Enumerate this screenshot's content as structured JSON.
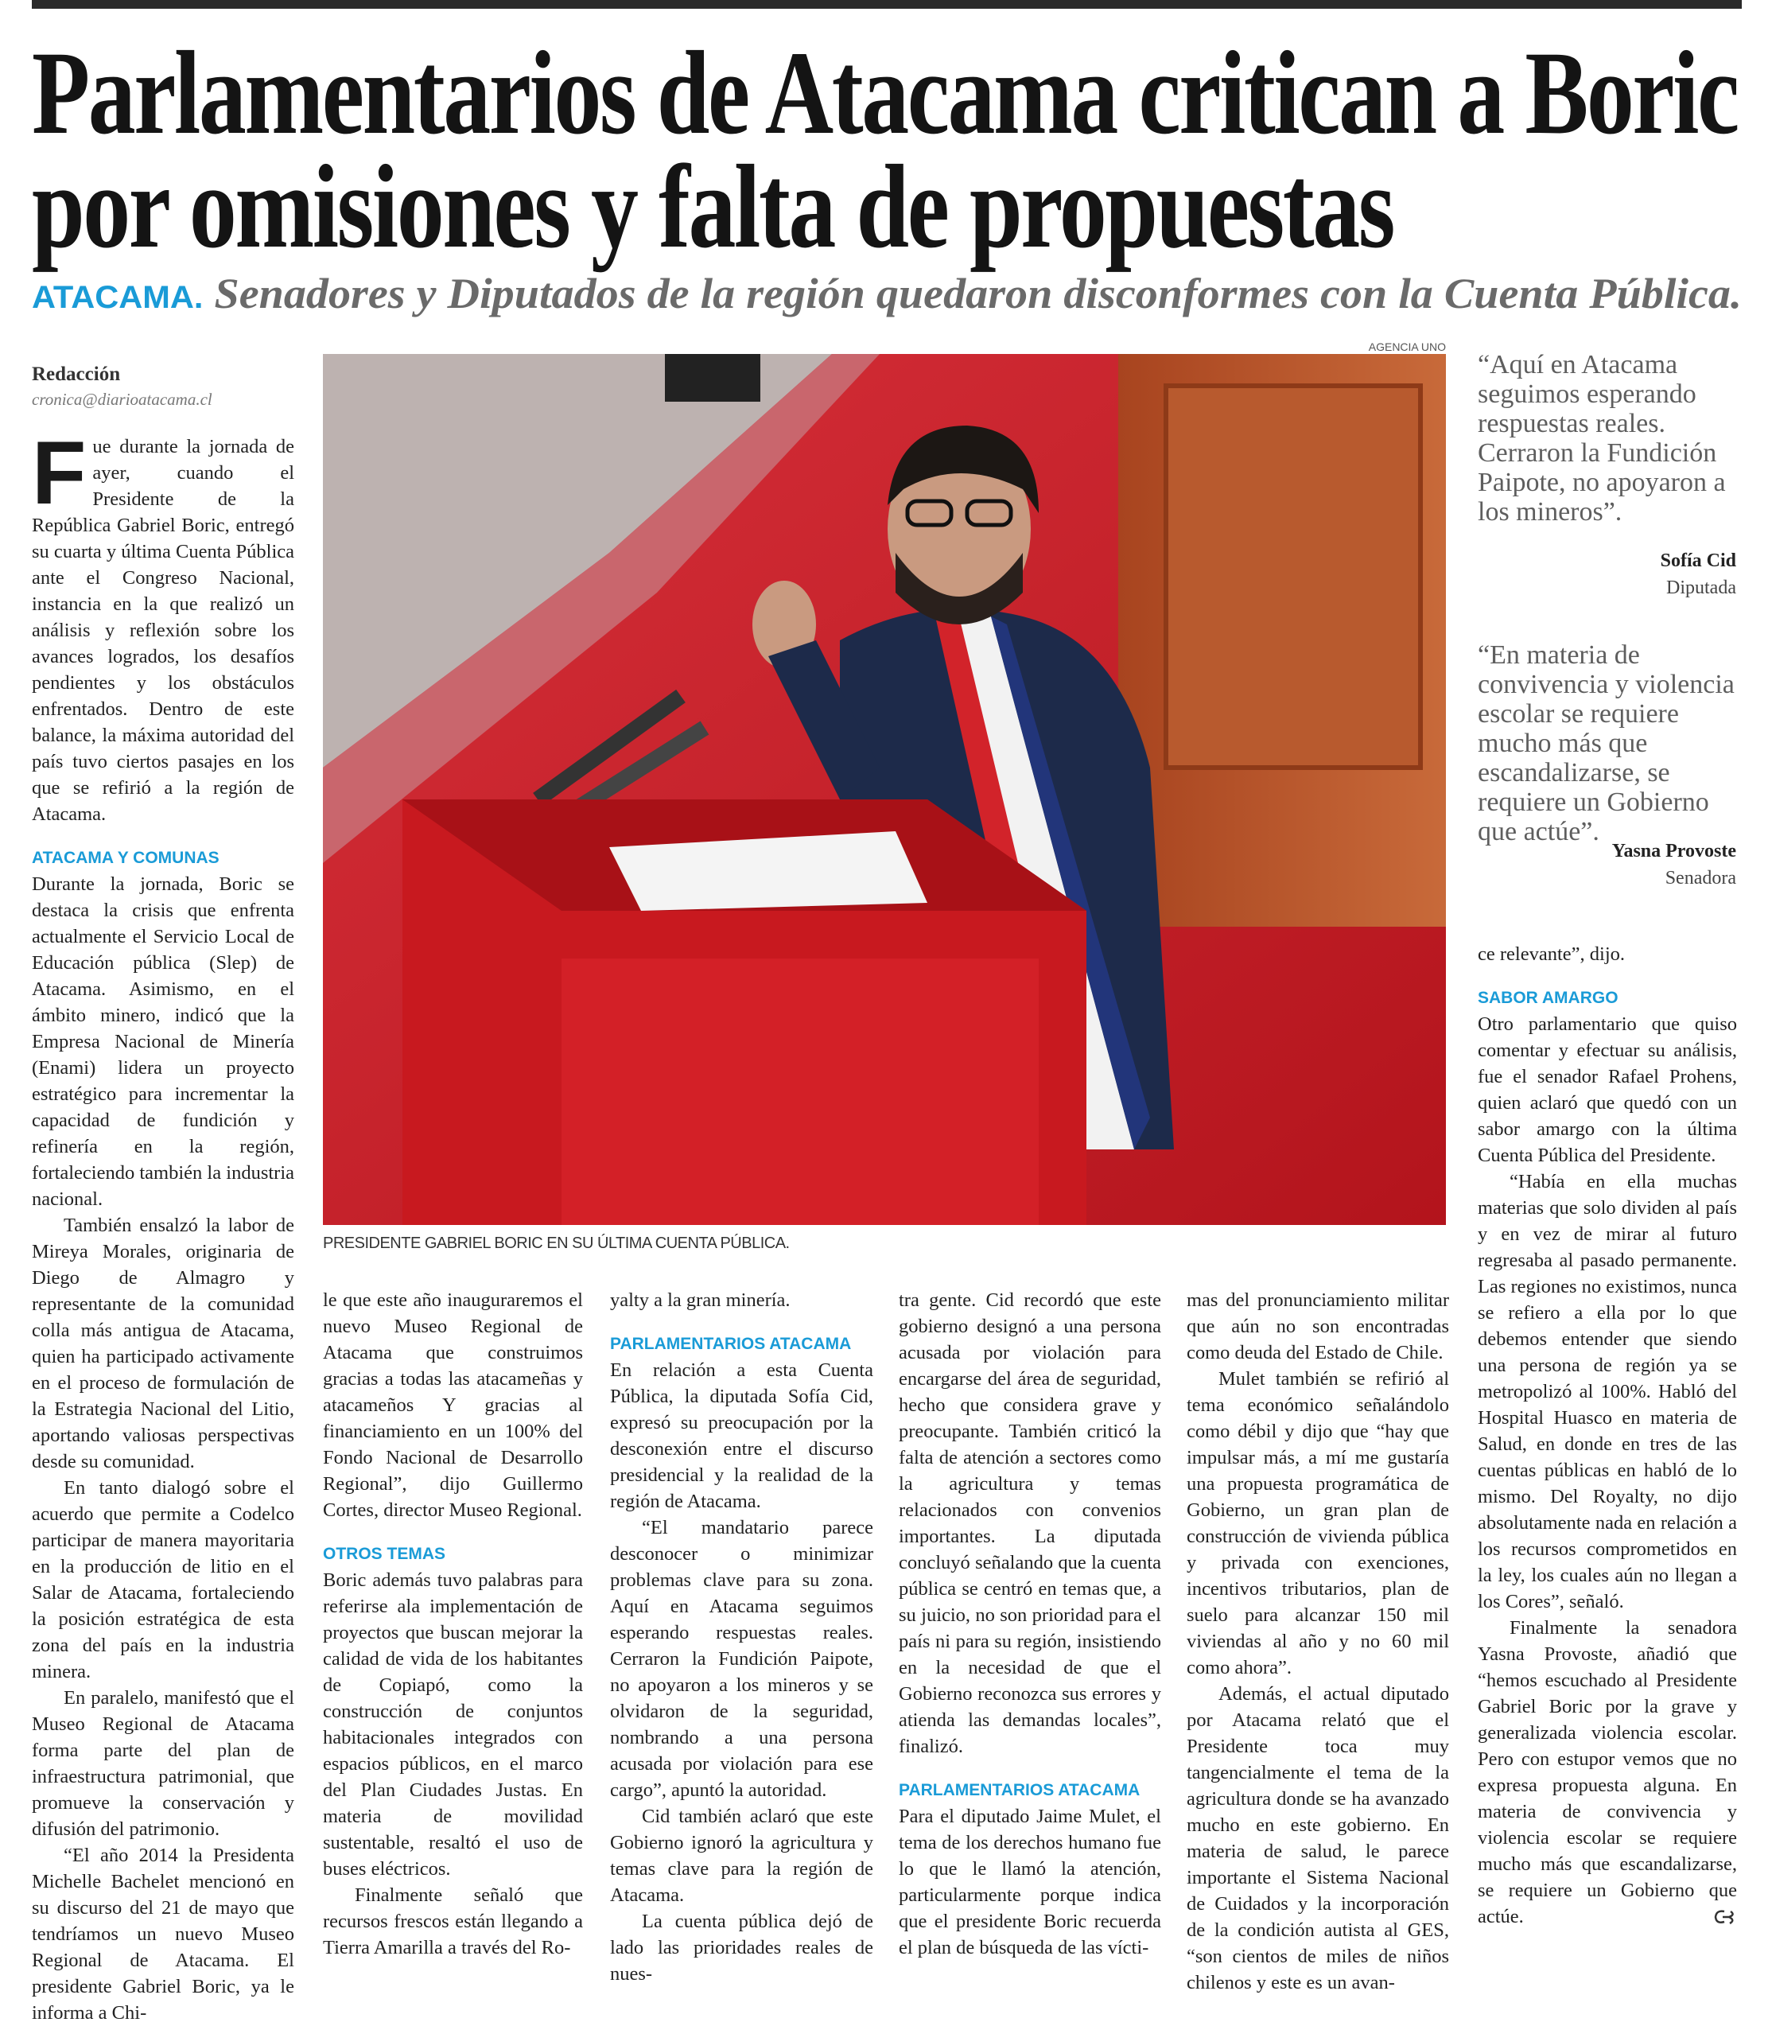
{
  "article": {
    "headline_line1": "Parlamentarios de Atacama critican a Boric",
    "headline_line2": "por omisiones y falta de propuestas",
    "kicker": "ATACAMA.",
    "subtitle": "Senadores y Diputados de la región quedaron disconformes con la Cuenta Pública.",
    "byline": "Redacción",
    "email": "cronica@diarioatacama.cl",
    "photo_credit": "AGENCIA UNO",
    "photo_caption": "PRESIDENTE GABRIEL BORIC EN SU ÚLTIMA CUENTA PÚBLICA.",
    "accent_color": "#1a9bd7"
  },
  "columns": {
    "c1": {
      "dropcap": "F",
      "p1": "ue durante la jornada de ayer, cuando el Presidente de la República Gabriel Boric, entregó su cuarta y última Cuenta Pública ante el Congreso Nacional, instancia en la que realizó un análisis y reflexión sobre los avances logrados, los desafíos pendientes y los obstáculos enfrentados. Dentro de este balance, la máxima autoridad del país tuvo ciertos pasajes en los que se refirió a la región de Atacama.",
      "h1": "ATACAMA Y COMUNAS",
      "p2": "Durante la jornada, Boric se destaca la crisis que enfrenta actualmente el Servicio Local de Educación pública (Slep) de Atacama. Asimismo, en el ámbito minero, indicó que la Empresa Nacional de Minería (Enami) lidera un proyecto estratégico para incrementar la capacidad de fundición y refinería en la región, fortaleciendo también la industria nacional.",
      "p3": "También ensalzó la labor de Mireya Morales, originaria de Diego de Almagro y representante de la comunidad colla más antigua de Atacama, quien ha participado activamente en el proceso de formulación de la Estrategia Nacional del Litio, aportando valiosas perspectivas desde su comunidad.",
      "p4": "En tanto dialogó sobre el acuerdo que permite a Codelco participar de manera mayoritaria en la producción de litio en el Salar de Atacama, fortaleciendo la posición estratégica de esta zona del país en la industria minera.",
      "p5": "En paralelo, manifestó que el Museo Regional de Atacama forma parte del plan de infraestructura patrimonial, que promueve la conservación y difusión del patrimonio.",
      "p6": "“El año 2014 la Presidenta Michelle Bachelet mencionó en su discurso del 21 de mayo que tendríamos un nuevo Museo Regional de Atacama. El presidente Gabriel Boric, ya le informa a Chi-"
    },
    "c2": {
      "p1": "le que este año inauguraremos el nuevo Museo Regional de Atacama que construimos gracias a todas las atacameñas y atacameños Y gracias al financiamiento en un 100% del Fondo Nacional de Desarrollo Regional”, dijo Guillermo Cortes, director Museo Regional.",
      "h1": "OTROS TEMAS",
      "p2": "Boric además tuvo palabras para referirse ala implementación de proyectos que buscan mejorar la calidad de vida de los habitantes de Copiapó, como la construcción de conjuntos habitacionales integrados con espacios públicos, en el marco del Plan Ciudades Justas. En materia de movilidad sustentable, resaltó el uso de buses eléctricos.",
      "p3": "Finalmente señaló que recursos frescos están llegando a Tierra Amarilla a través del Ro-"
    },
    "c3": {
      "p1": "yalty a la gran minería.",
      "h1": "PARLAMENTARIOS ATACAMA",
      "p2": "En relación a esta Cuenta Pública, la diputada Sofía Cid, expresó su preocupación por la desconexión entre el discurso presidencial y la realidad de la región de Atacama.",
      "p3": "“El mandatario parece desconocer o minimizar problemas clave para su zona. Aquí en Atacama seguimos esperando respuestas reales. Cerraron la Fundición Paipote, no apoyaron a los mineros y se olvidaron de la seguridad, nombrando a una persona acusada por violación para ese cargo”, apuntó la autoridad.",
      "p4": "Cid también aclaró que este Gobierno ignoró la agricultura y temas clave para la región de Atacama.",
      "p5": "La cuenta pública dejó de lado las prioridades reales de nues-"
    },
    "c4": {
      "p1": "tra gente. Cid recordó que este gobierno designó a una persona acusada por violación para encargarse del área de seguridad, hecho que considera grave y preocupante. También criticó la falta de atención a sectores como la agricultura y temas relacionados con convenios importantes. La diputada concluyó señalando que la cuenta pública se centró en temas que, a su juicio, no son prioridad para el país ni para su región, insistiendo en la necesidad de que el Gobierno reconozca sus errores y atienda las demandas locales”, finalizó.",
      "h1": "PARLAMENTARIOS ATACAMA",
      "p2": "Para el diputado Jaime Mulet, el tema de los derechos humano fue lo que le llamó la atención, particularmente porque indica que el presidente Boric recuerda el plan de búsqueda de las vícti-"
    },
    "c5": {
      "p1": "mas del pronunciamiento militar que aún no son encontradas como deuda del Estado de Chile.",
      "p2": "Mulet también se refirió al tema económico señalándolo como débil y dijo que “hay que impulsar más, a mí me gustaría una propuesta programática de Gobierno, un gran plan de construcción de vivienda pública y privada con exenciones, incentivos tributarios, plan de suelo para alcanzar 150 mil viviendas al año y no 60 mil como ahora”.",
      "p3": "Además, el actual diputado por Atacama relató que el Presidente toca muy tangencialmente el tema de la agricultura donde se ha avanzado mucho en este gobierno. En materia de salud, le parece importante el Sistema Nacional de Cuidados y la incorporación de la condición autista al GES, “son cientos de miles de niños chilenos y este es un avan-"
    },
    "c6": {
      "p1": "ce relevante”, dijo.",
      "h1": "SABOR AMARGO",
      "p2": "Otro parlamentario que quiso comentar y efectuar su análisis, fue el senador Rafael Prohens, quien aclaró que quedó con un sabor amargo con la última Cuenta Pública del Presidente.",
      "p3": "“Había en ella muchas materias que solo dividen al país y en vez de mirar al futuro regresaba al pasado permanente. Las regiones no existimos, nunca se refiero a ella por lo que debemos entender que siendo una persona de región ya se metropolizó al 100%. Habló del Hospital Huasco en materia de Salud, en donde en tres de las cuentas públicas en habló de lo mismo. Del Royalty, no dijo absolutamente nada en relación a los recursos comprometidos en la ley, los cuales aún no llegan a los Cores”, señaló.",
      "p4": "Finalmente la senadora Yasna Provoste, añadió que “hemos escuchado al Presidente Gabriel Boric por la grave y generalizada violencia escolar. Pero con estupor vemos que no expresa propuesta alguna. En materia de convivencia y violencia escolar se requiere mucho más que escandalizarse, se requiere un Gobierno que actúe."
    }
  },
  "quotes": [
    {
      "text": "“Aquí en Atacama seguimos esperando respuestas reales. Cerraron la Fundición Paipote, no apoyaron a los mineros”.",
      "name": "Sofía Cid",
      "role": "Diputada"
    },
    {
      "text": "“En materia de convivencia y violencia escolar se requiere mucho más que escandalizarse, se requiere un Gobierno que actúe”.",
      "name": "Yasna Provoste",
      "role": "Senadora"
    }
  ]
}
